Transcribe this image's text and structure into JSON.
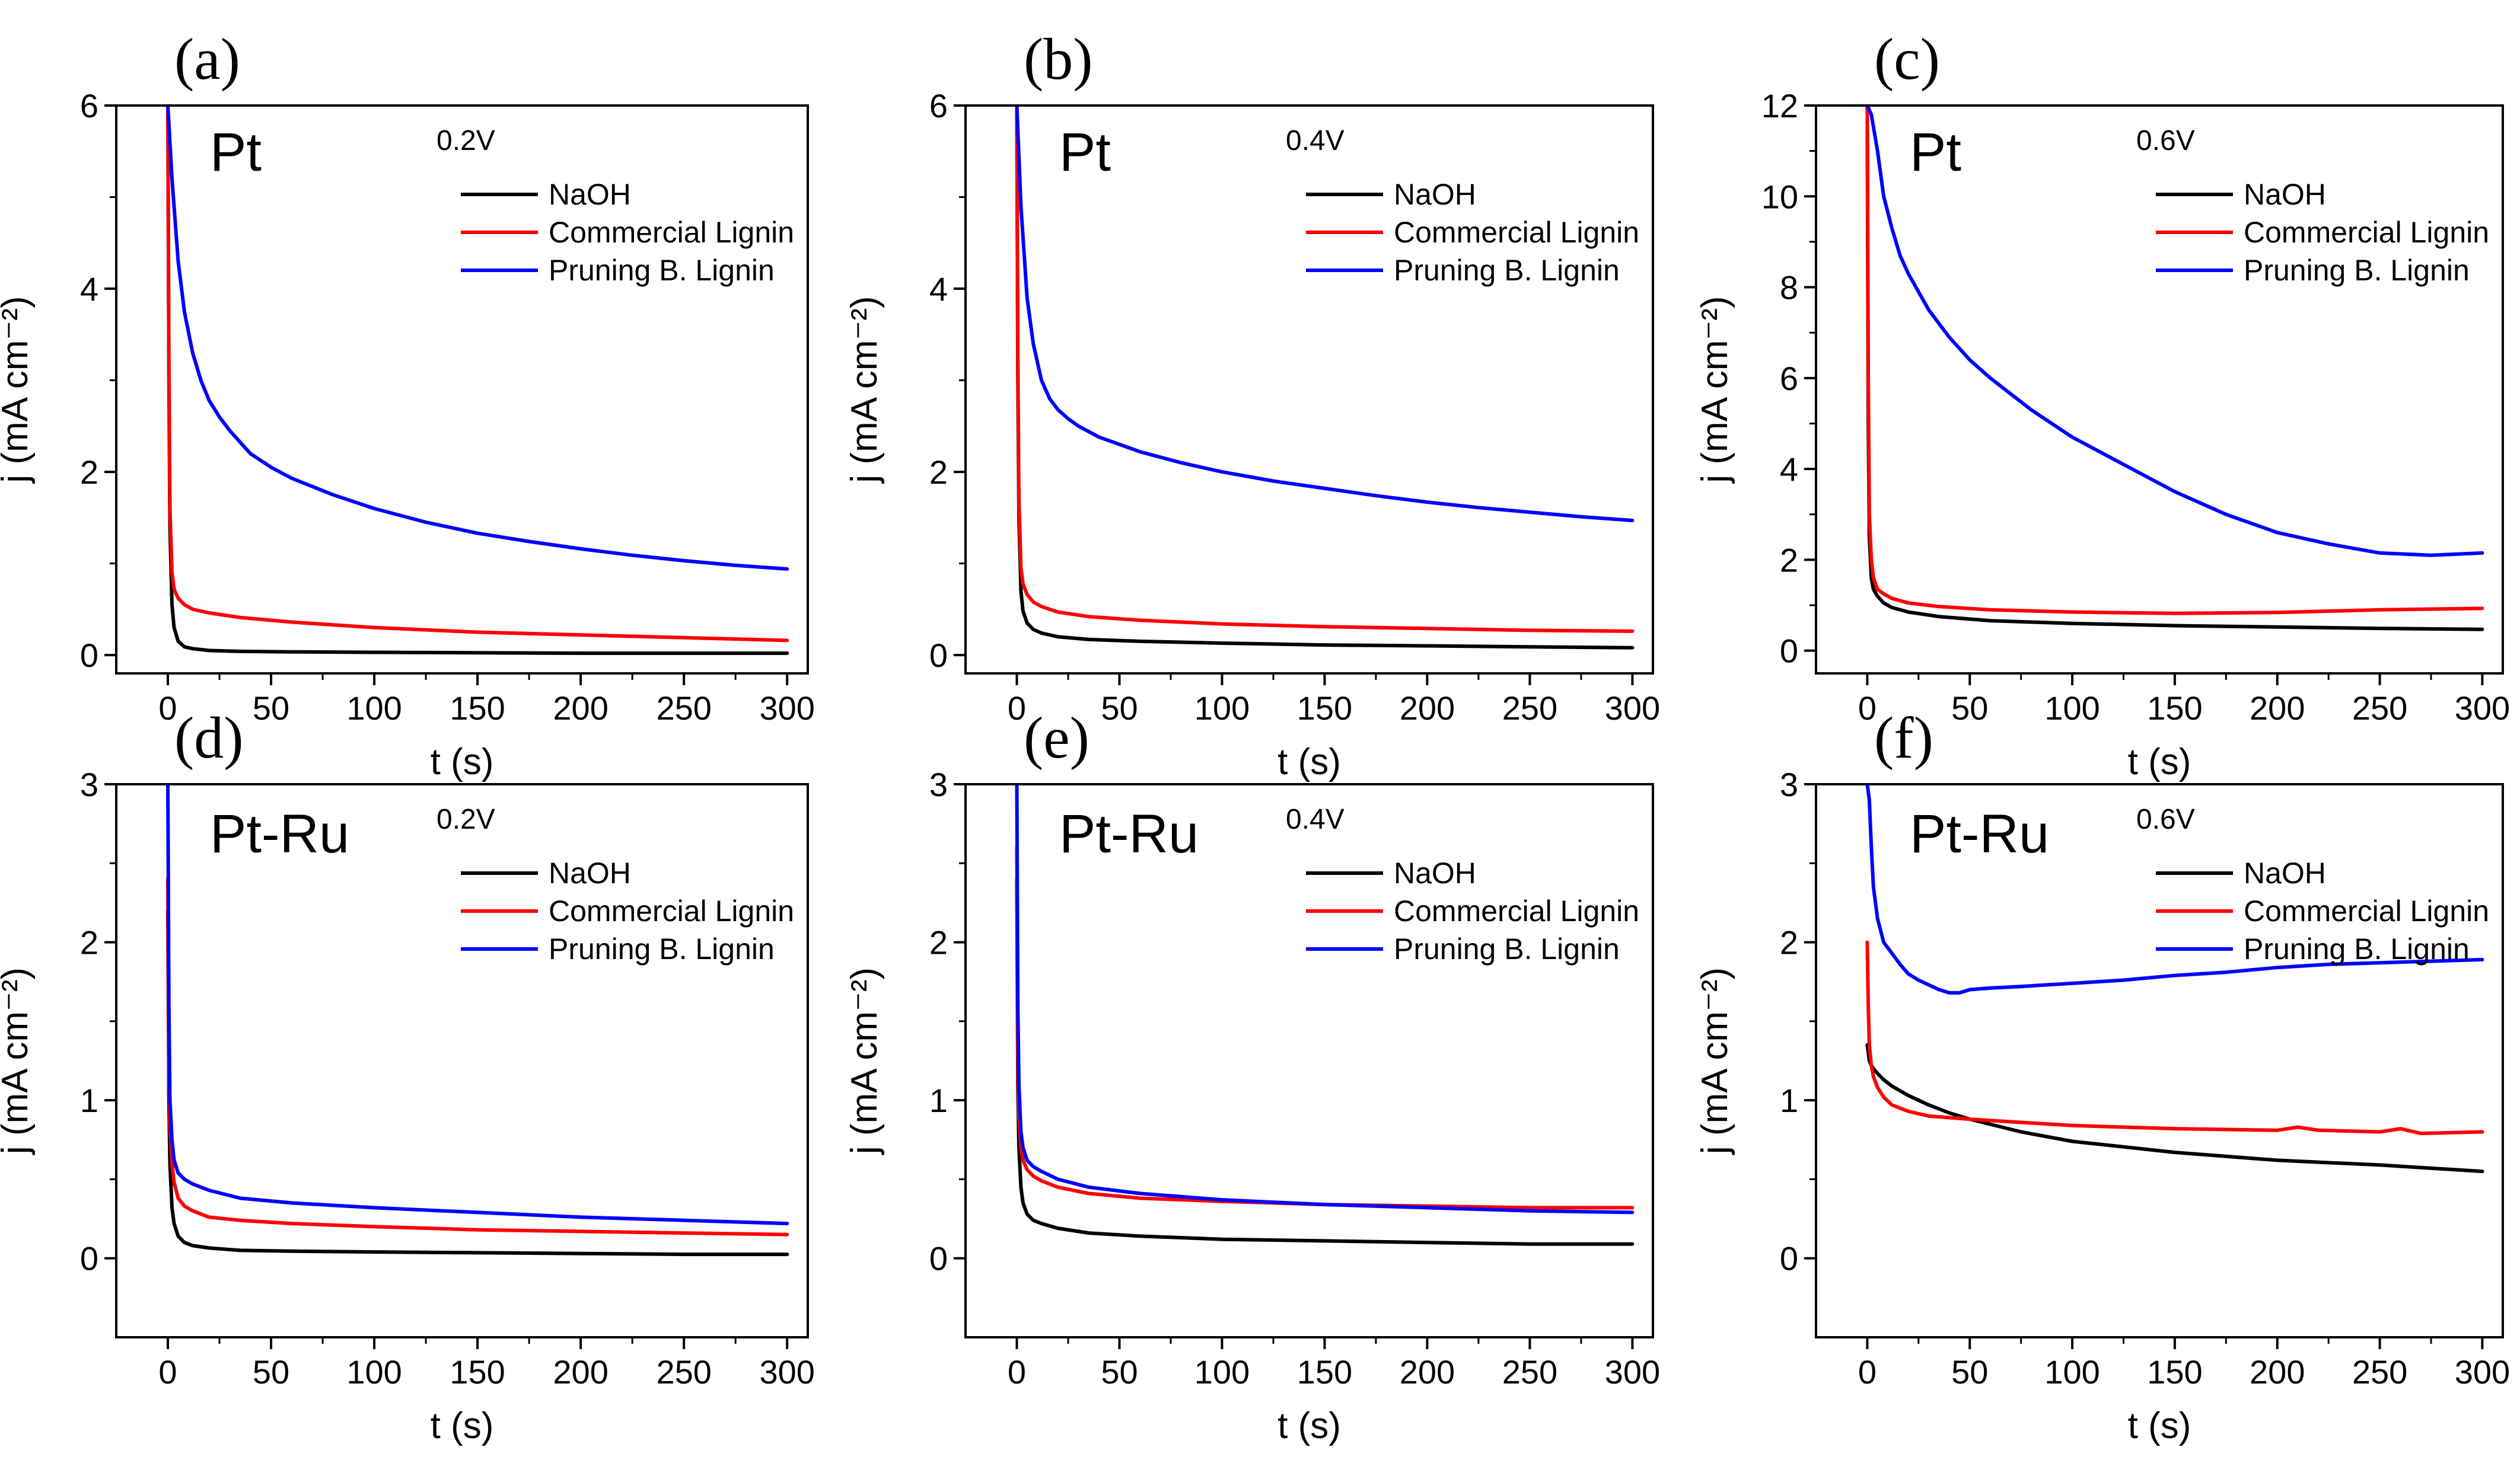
{
  "chart_data": [
    {
      "type": "line",
      "panel_label": "(a)",
      "material": "Pt",
      "potential": "0.2V",
      "xlabel": "t (s)",
      "ylabel": "j (mA cm⁻²)",
      "xlim": [
        -25,
        310
      ],
      "ylim": [
        -0.2,
        6
      ],
      "xticks": [
        0,
        50,
        100,
        150,
        200,
        250,
        300
      ],
      "yticks": [
        0,
        2,
        4,
        6
      ],
      "xtick_labels": [
        "0",
        "50",
        "100",
        "150",
        "200",
        "250",
        "300"
      ],
      "ytick_labels": [
        "0",
        "2",
        "4",
        "6"
      ],
      "legend_position": "top-right",
      "series": [
        {
          "name": "NaOH",
          "color": "#000000",
          "x": [
            0,
            0.5,
            1,
            2,
            3,
            5,
            8,
            12,
            20,
            35,
            60,
            100,
            150,
            200,
            250,
            300
          ],
          "y": [
            6.0,
            3.0,
            1.4,
            0.55,
            0.3,
            0.15,
            0.09,
            0.07,
            0.05,
            0.04,
            0.035,
            0.03,
            0.025,
            0.02,
            0.02,
            0.02
          ]
        },
        {
          "name": "Commercial Lignin",
          "color": "#ff0000",
          "x": [
            0,
            0.5,
            1,
            2,
            3,
            5,
            8,
            12,
            20,
            35,
            60,
            100,
            150,
            200,
            250,
            300
          ],
          "y": [
            6.0,
            3.2,
            1.6,
            0.9,
            0.72,
            0.62,
            0.55,
            0.5,
            0.46,
            0.41,
            0.36,
            0.3,
            0.25,
            0.22,
            0.19,
            0.16
          ]
        },
        {
          "name": "Pruning B. Lignin",
          "color": "#0000ff",
          "x": [
            0,
            2,
            5,
            8,
            12,
            16,
            20,
            25,
            30,
            40,
            50,
            60,
            80,
            100,
            125,
            150,
            175,
            200,
            225,
            250,
            275,
            300
          ],
          "y": [
            6.0,
            5.2,
            4.3,
            3.75,
            3.3,
            3.0,
            2.78,
            2.6,
            2.45,
            2.2,
            2.05,
            1.93,
            1.75,
            1.6,
            1.45,
            1.33,
            1.24,
            1.16,
            1.09,
            1.03,
            0.98,
            0.94
          ]
        }
      ]
    },
    {
      "type": "line",
      "panel_label": "(b)",
      "material": "Pt",
      "potential": "0.4V",
      "xlabel": "t (s)",
      "ylabel": "j (mA cm⁻²)",
      "xlim": [
        -25,
        310
      ],
      "ylim": [
        -0.2,
        6
      ],
      "xticks": [
        0,
        50,
        100,
        150,
        200,
        250,
        300
      ],
      "yticks": [
        0,
        2,
        4,
        6
      ],
      "xtick_labels": [
        "0",
        "50",
        "100",
        "150",
        "200",
        "250",
        "300"
      ],
      "ytick_labels": [
        "0",
        "2",
        "4",
        "6"
      ],
      "legend_position": "top-right",
      "series": [
        {
          "name": "NaOH",
          "color": "#000000",
          "x": [
            0,
            0.5,
            1,
            2,
            3,
            5,
            8,
            12,
            20,
            35,
            60,
            100,
            150,
            200,
            250,
            300
          ],
          "y": [
            6.0,
            3.0,
            1.5,
            0.7,
            0.48,
            0.35,
            0.28,
            0.24,
            0.2,
            0.17,
            0.15,
            0.13,
            0.11,
            0.1,
            0.09,
            0.08
          ]
        },
        {
          "name": "Commercial Lignin",
          "color": "#ff0000",
          "x": [
            0,
            0.5,
            1,
            2,
            3,
            5,
            8,
            12,
            20,
            35,
            60,
            100,
            150,
            200,
            250,
            300
          ],
          "y": [
            6.0,
            3.2,
            1.7,
            0.95,
            0.78,
            0.66,
            0.58,
            0.53,
            0.47,
            0.42,
            0.38,
            0.34,
            0.31,
            0.29,
            0.27,
            0.26
          ]
        },
        {
          "name": "Pruning B. Lignin",
          "color": "#0000ff",
          "x": [
            0,
            2,
            5,
            8,
            12,
            16,
            20,
            25,
            30,
            40,
            50,
            60,
            80,
            100,
            125,
            150,
            175,
            200,
            225,
            250,
            275,
            300
          ],
          "y": [
            6.0,
            4.9,
            3.9,
            3.4,
            3.0,
            2.8,
            2.68,
            2.58,
            2.5,
            2.38,
            2.3,
            2.22,
            2.1,
            2.0,
            1.9,
            1.82,
            1.74,
            1.67,
            1.61,
            1.56,
            1.51,
            1.47
          ]
        }
      ]
    },
    {
      "type": "line",
      "panel_label": "(c)",
      "material": "Pt",
      "potential": "0.6V",
      "xlabel": "t (s)",
      "ylabel": "j (mA cm⁻²)",
      "xlim": [
        -25,
        310
      ],
      "ylim": [
        -0.5,
        12
      ],
      "xticks": [
        0,
        50,
        100,
        150,
        200,
        250,
        300
      ],
      "yticks": [
        0,
        2,
        4,
        6,
        8,
        10,
        12
      ],
      "xtick_labels": [
        "0",
        "50",
        "100",
        "150",
        "200",
        "250",
        "300"
      ],
      "ytick_labels": [
        "0",
        "2",
        "4",
        "6",
        "8",
        "10",
        "12"
      ],
      "legend_position": "top-right",
      "series": [
        {
          "name": "NaOH",
          "color": "#000000",
          "x": [
            0,
            0.5,
            1,
            2,
            3,
            5,
            8,
            12,
            20,
            35,
            60,
            100,
            150,
            200,
            250,
            300
          ],
          "y": [
            12.0,
            5.0,
            2.5,
            1.6,
            1.35,
            1.2,
            1.05,
            0.95,
            0.85,
            0.75,
            0.66,
            0.6,
            0.55,
            0.52,
            0.49,
            0.47
          ]
        },
        {
          "name": "Commercial Lignin",
          "color": "#ff0000",
          "x": [
            0,
            0.5,
            1,
            2,
            3,
            5,
            8,
            12,
            20,
            35,
            60,
            100,
            150,
            200,
            250,
            300
          ],
          "y": [
            12.0,
            6.0,
            3.0,
            2.0,
            1.6,
            1.35,
            1.25,
            1.15,
            1.05,
            0.97,
            0.9,
            0.85,
            0.82,
            0.84,
            0.9,
            0.93
          ]
        },
        {
          "name": "Pruning B. Lignin",
          "color": "#0000ff",
          "x": [
            0,
            2,
            5,
            8,
            12,
            16,
            20,
            25,
            30,
            40,
            50,
            60,
            80,
            100,
            125,
            150,
            175,
            200,
            225,
            250,
            275,
            300
          ],
          "y": [
            12.0,
            11.8,
            11.0,
            10.0,
            9.3,
            8.7,
            8.3,
            7.9,
            7.5,
            6.9,
            6.4,
            6.0,
            5.3,
            4.7,
            4.1,
            3.5,
            3.0,
            2.6,
            2.35,
            2.15,
            2.1,
            2.15
          ]
        }
      ]
    },
    {
      "type": "line",
      "panel_label": "(d)",
      "material": "Pt-Ru",
      "potential": "0.2V",
      "xlabel": "t (s)",
      "ylabel": "j (mA cm⁻²)",
      "xlim": [
        -25,
        310
      ],
      "ylim": [
        -0.5,
        3
      ],
      "xticks": [
        0,
        50,
        100,
        150,
        200,
        250,
        300
      ],
      "yticks": [
        0,
        1,
        2,
        3
      ],
      "xtick_labels": [
        "0",
        "50",
        "100",
        "150",
        "200",
        "250",
        "300"
      ],
      "ytick_labels": [
        "0",
        "1",
        "2",
        "3"
      ],
      "legend_position": "top-right",
      "series": [
        {
          "name": "NaOH",
          "color": "#000000",
          "x": [
            0,
            0.5,
            1,
            2,
            3,
            5,
            8,
            12,
            20,
            35,
            60,
            100,
            150,
            200,
            250,
            300
          ],
          "y": [
            2.2,
            1.0,
            0.6,
            0.32,
            0.22,
            0.14,
            0.1,
            0.08,
            0.065,
            0.05,
            0.045,
            0.04,
            0.035,
            0.03,
            0.025,
            0.025
          ]
        },
        {
          "name": "Commercial Lignin",
          "color": "#ff0000",
          "x": [
            0,
            0.5,
            1,
            2,
            3,
            5,
            8,
            12,
            20,
            35,
            60,
            100,
            150,
            200,
            250,
            300
          ],
          "y": [
            2.4,
            1.2,
            0.85,
            0.6,
            0.48,
            0.38,
            0.33,
            0.3,
            0.26,
            0.24,
            0.22,
            0.2,
            0.18,
            0.17,
            0.16,
            0.15
          ]
        },
        {
          "name": "Pruning B. Lignin",
          "color": "#0000ff",
          "x": [
            0,
            0.5,
            1,
            2,
            3,
            5,
            8,
            12,
            20,
            35,
            60,
            100,
            150,
            200,
            250,
            300
          ],
          "y": [
            3.0,
            1.6,
            1.0,
            0.75,
            0.62,
            0.54,
            0.5,
            0.47,
            0.43,
            0.38,
            0.35,
            0.32,
            0.29,
            0.26,
            0.24,
            0.22
          ]
        }
      ]
    },
    {
      "type": "line",
      "panel_label": "(e)",
      "material": "Pt-Ru",
      "potential": "0.4V",
      "xlabel": "t (s)",
      "ylabel": "j (mA cm⁻²)",
      "xlim": [
        -25,
        310
      ],
      "ylim": [
        -0.5,
        3
      ],
      "xticks": [
        0,
        50,
        100,
        150,
        200,
        250,
        300
      ],
      "yticks": [
        0,
        1,
        2,
        3
      ],
      "xtick_labels": [
        "0",
        "50",
        "100",
        "150",
        "200",
        "250",
        "300"
      ],
      "ytick_labels": [
        "0",
        "1",
        "2",
        "3"
      ],
      "legend_position": "top-right",
      "series": [
        {
          "name": "NaOH",
          "color": "#000000",
          "x": [
            0,
            0.5,
            1,
            2,
            3,
            5,
            8,
            12,
            20,
            35,
            60,
            100,
            150,
            200,
            250,
            300
          ],
          "y": [
            2.4,
            1.1,
            0.7,
            0.45,
            0.35,
            0.28,
            0.24,
            0.22,
            0.19,
            0.16,
            0.14,
            0.12,
            0.11,
            0.1,
            0.09,
            0.09
          ]
        },
        {
          "name": "Commercial Lignin",
          "color": "#ff0000",
          "x": [
            0,
            0.5,
            1,
            2,
            3,
            5,
            8,
            12,
            20,
            35,
            60,
            100,
            150,
            200,
            250,
            300
          ],
          "y": [
            2.6,
            1.3,
            0.9,
            0.7,
            0.62,
            0.56,
            0.52,
            0.49,
            0.45,
            0.41,
            0.38,
            0.36,
            0.34,
            0.33,
            0.32,
            0.32
          ]
        },
        {
          "name": "Pruning B. Lignin",
          "color": "#0000ff",
          "x": [
            0,
            0.5,
            1,
            2,
            3,
            5,
            8,
            12,
            20,
            35,
            60,
            100,
            150,
            200,
            250,
            300
          ],
          "y": [
            3.0,
            1.6,
            1.1,
            0.8,
            0.7,
            0.62,
            0.58,
            0.55,
            0.5,
            0.45,
            0.41,
            0.37,
            0.34,
            0.32,
            0.3,
            0.29
          ]
        }
      ]
    },
    {
      "type": "line",
      "panel_label": "(f)",
      "material": "Pt-Ru",
      "potential": "0.6V",
      "xlabel": "t (s)",
      "ylabel": "j (mA cm⁻²)",
      "xlim": [
        -25,
        310
      ],
      "ylim": [
        -0.5,
        3
      ],
      "xticks": [
        0,
        50,
        100,
        150,
        200,
        250,
        300
      ],
      "yticks": [
        0,
        1,
        2,
        3
      ],
      "xtick_labels": [
        "0",
        "50",
        "100",
        "150",
        "200",
        "250",
        "300"
      ],
      "ytick_labels": [
        "0",
        "1",
        "2",
        "3"
      ],
      "legend_position": "top-right",
      "series": [
        {
          "name": "NaOH",
          "color": "#000000",
          "x": [
            0,
            1,
            2,
            3,
            5,
            8,
            12,
            20,
            30,
            40,
            50,
            75,
            100,
            150,
            200,
            250,
            300
          ],
          "y": [
            1.35,
            1.25,
            1.22,
            1.2,
            1.17,
            1.13,
            1.09,
            1.03,
            0.97,
            0.92,
            0.88,
            0.8,
            0.74,
            0.67,
            0.62,
            0.59,
            0.55
          ]
        },
        {
          "name": "Commercial Lignin",
          "color": "#ff0000",
          "x": [
            0,
            0.5,
            1,
            2,
            3,
            5,
            8,
            12,
            20,
            30,
            40,
            50,
            75,
            100,
            150,
            200,
            210,
            220,
            250,
            260,
            270,
            300
          ],
          "y": [
            2.0,
            1.6,
            1.35,
            1.22,
            1.15,
            1.08,
            1.02,
            0.97,
            0.93,
            0.9,
            0.89,
            0.88,
            0.86,
            0.84,
            0.82,
            0.81,
            0.83,
            0.81,
            0.8,
            0.82,
            0.79,
            0.8
          ]
        },
        {
          "name": "Pruning B. Lignin",
          "color": "#0000ff",
          "x": [
            0,
            1,
            2,
            3,
            5,
            8,
            12,
            16,
            20,
            25,
            30,
            35,
            40,
            45,
            50,
            60,
            75,
            100,
            125,
            150,
            175,
            200,
            225,
            250,
            275,
            300
          ],
          "y": [
            3.0,
            2.9,
            2.6,
            2.35,
            2.15,
            2.0,
            1.93,
            1.86,
            1.8,
            1.76,
            1.73,
            1.7,
            1.68,
            1.68,
            1.7,
            1.71,
            1.72,
            1.74,
            1.76,
            1.79,
            1.81,
            1.84,
            1.86,
            1.87,
            1.88,
            1.89
          ]
        }
      ]
    }
  ]
}
